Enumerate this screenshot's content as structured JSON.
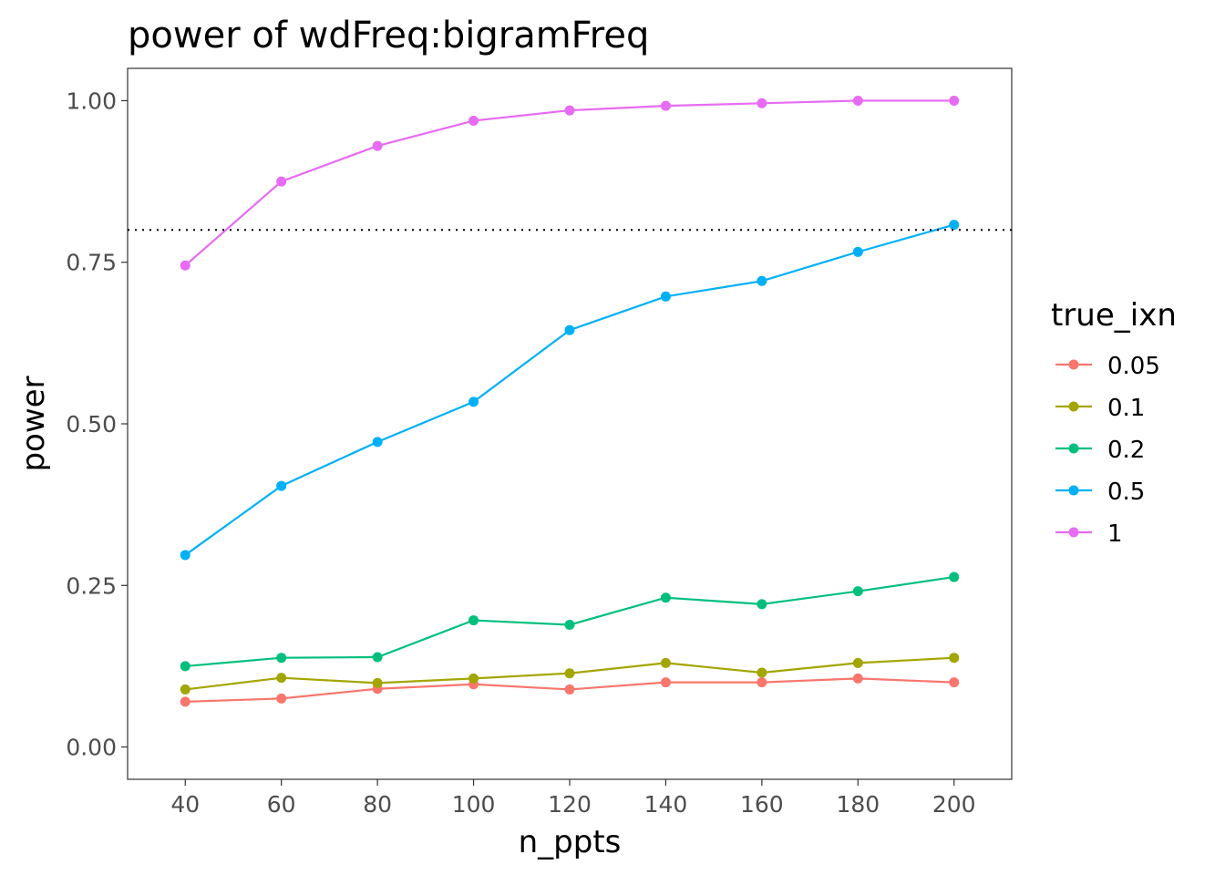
{
  "chart_data": {
    "type": "line",
    "title": "power of wdFreq:bigramFreq",
    "xlabel": "n_ppts",
    "ylabel": "power",
    "x": [
      40,
      60,
      80,
      100,
      120,
      140,
      160,
      180,
      200
    ],
    "xlim": [
      28,
      212
    ],
    "ylim": [
      -0.05,
      1.05
    ],
    "xticks": [
      40,
      60,
      80,
      100,
      120,
      140,
      160,
      180,
      200
    ],
    "yticks": [
      0,
      0.25,
      0.5,
      0.75,
      1
    ],
    "ytick_labels": [
      "0.00",
      "0.25",
      "0.50",
      "0.75",
      "1.00"
    ],
    "hline": {
      "y": 0.8,
      "style": "dotted"
    },
    "legend": {
      "title": "true_ixn",
      "position": "right"
    },
    "grid": false,
    "series": [
      {
        "name": "0.05",
        "color": "#F8766D",
        "values": [
          0.07,
          0.075,
          0.09,
          0.097,
          0.089,
          0.1,
          0.1,
          0.106,
          0.1
        ]
      },
      {
        "name": "0.1",
        "color": "#A3A500",
        "values": [
          0.089,
          0.107,
          0.099,
          0.106,
          0.114,
          0.13,
          0.115,
          0.13,
          0.138
        ]
      },
      {
        "name": "0.2",
        "color": "#00BF7D",
        "values": [
          0.125,
          0.138,
          0.139,
          0.196,
          0.189,
          0.231,
          0.221,
          0.241,
          0.263
        ]
      },
      {
        "name": "0.5",
        "color": "#00B0F6",
        "values": [
          0.297,
          0.404,
          0.472,
          0.534,
          0.645,
          0.697,
          0.721,
          0.766,
          0.808
        ]
      },
      {
        "name": "1",
        "color": "#E76BF3",
        "values": [
          0.745,
          0.875,
          0.93,
          0.969,
          0.985,
          0.992,
          0.996,
          1.0,
          1.0
        ]
      }
    ]
  }
}
